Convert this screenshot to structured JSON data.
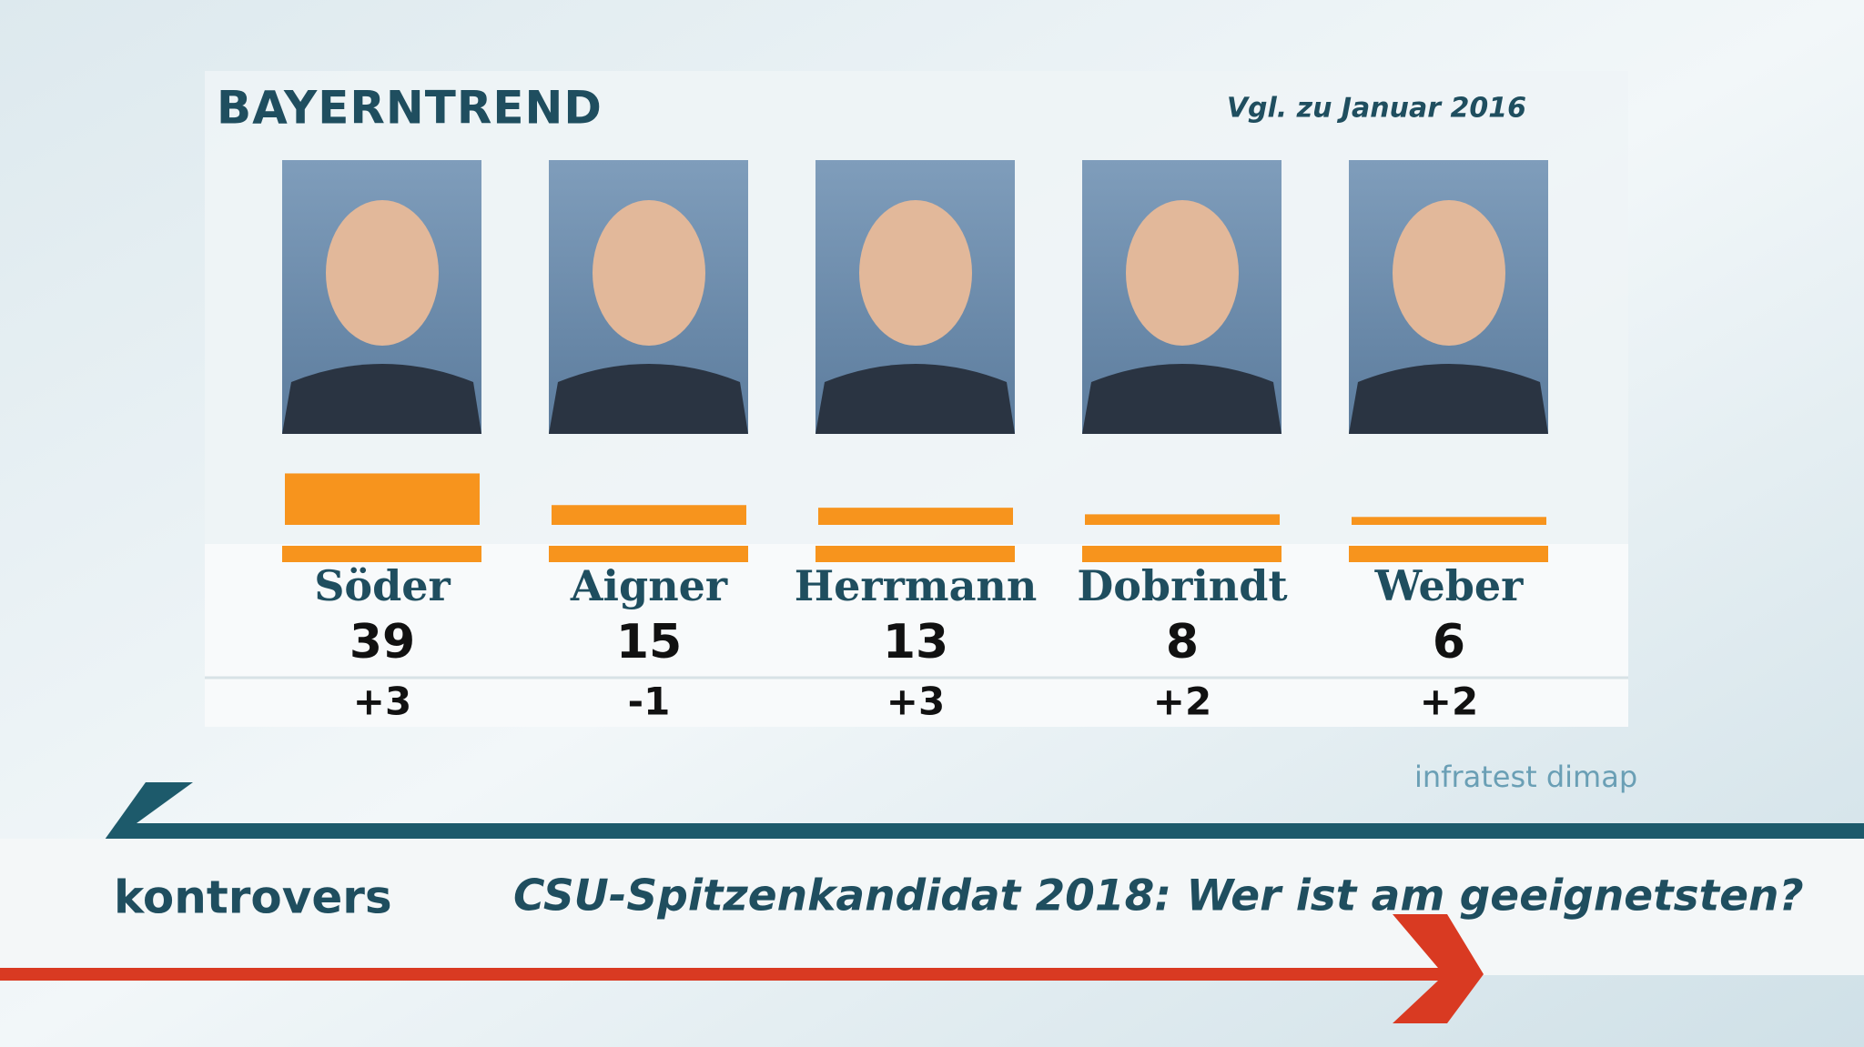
{
  "header": {
    "brand": "BAYERNTREND",
    "comparison": "Vgl. zu Januar 2016"
  },
  "chart_data": {
    "type": "bar",
    "categories": [
      "Söder",
      "Aigner",
      "Herrmann",
      "Dobrindt",
      "Weber"
    ],
    "values": [
      39,
      15,
      13,
      8,
      6
    ],
    "color": "#f7941d",
    "changes": {
      "values": [
        3,
        -1,
        3,
        2,
        2
      ],
      "value_labels": [
        "+3",
        "-1",
        "+3",
        "+2",
        "+2"
      ]
    },
    "source": "infratest dimap"
  },
  "footer": {
    "logo": "kontrovers",
    "title": "CSU-Spitzenkandidat 2018: Wer ist am geeignetsten?"
  }
}
